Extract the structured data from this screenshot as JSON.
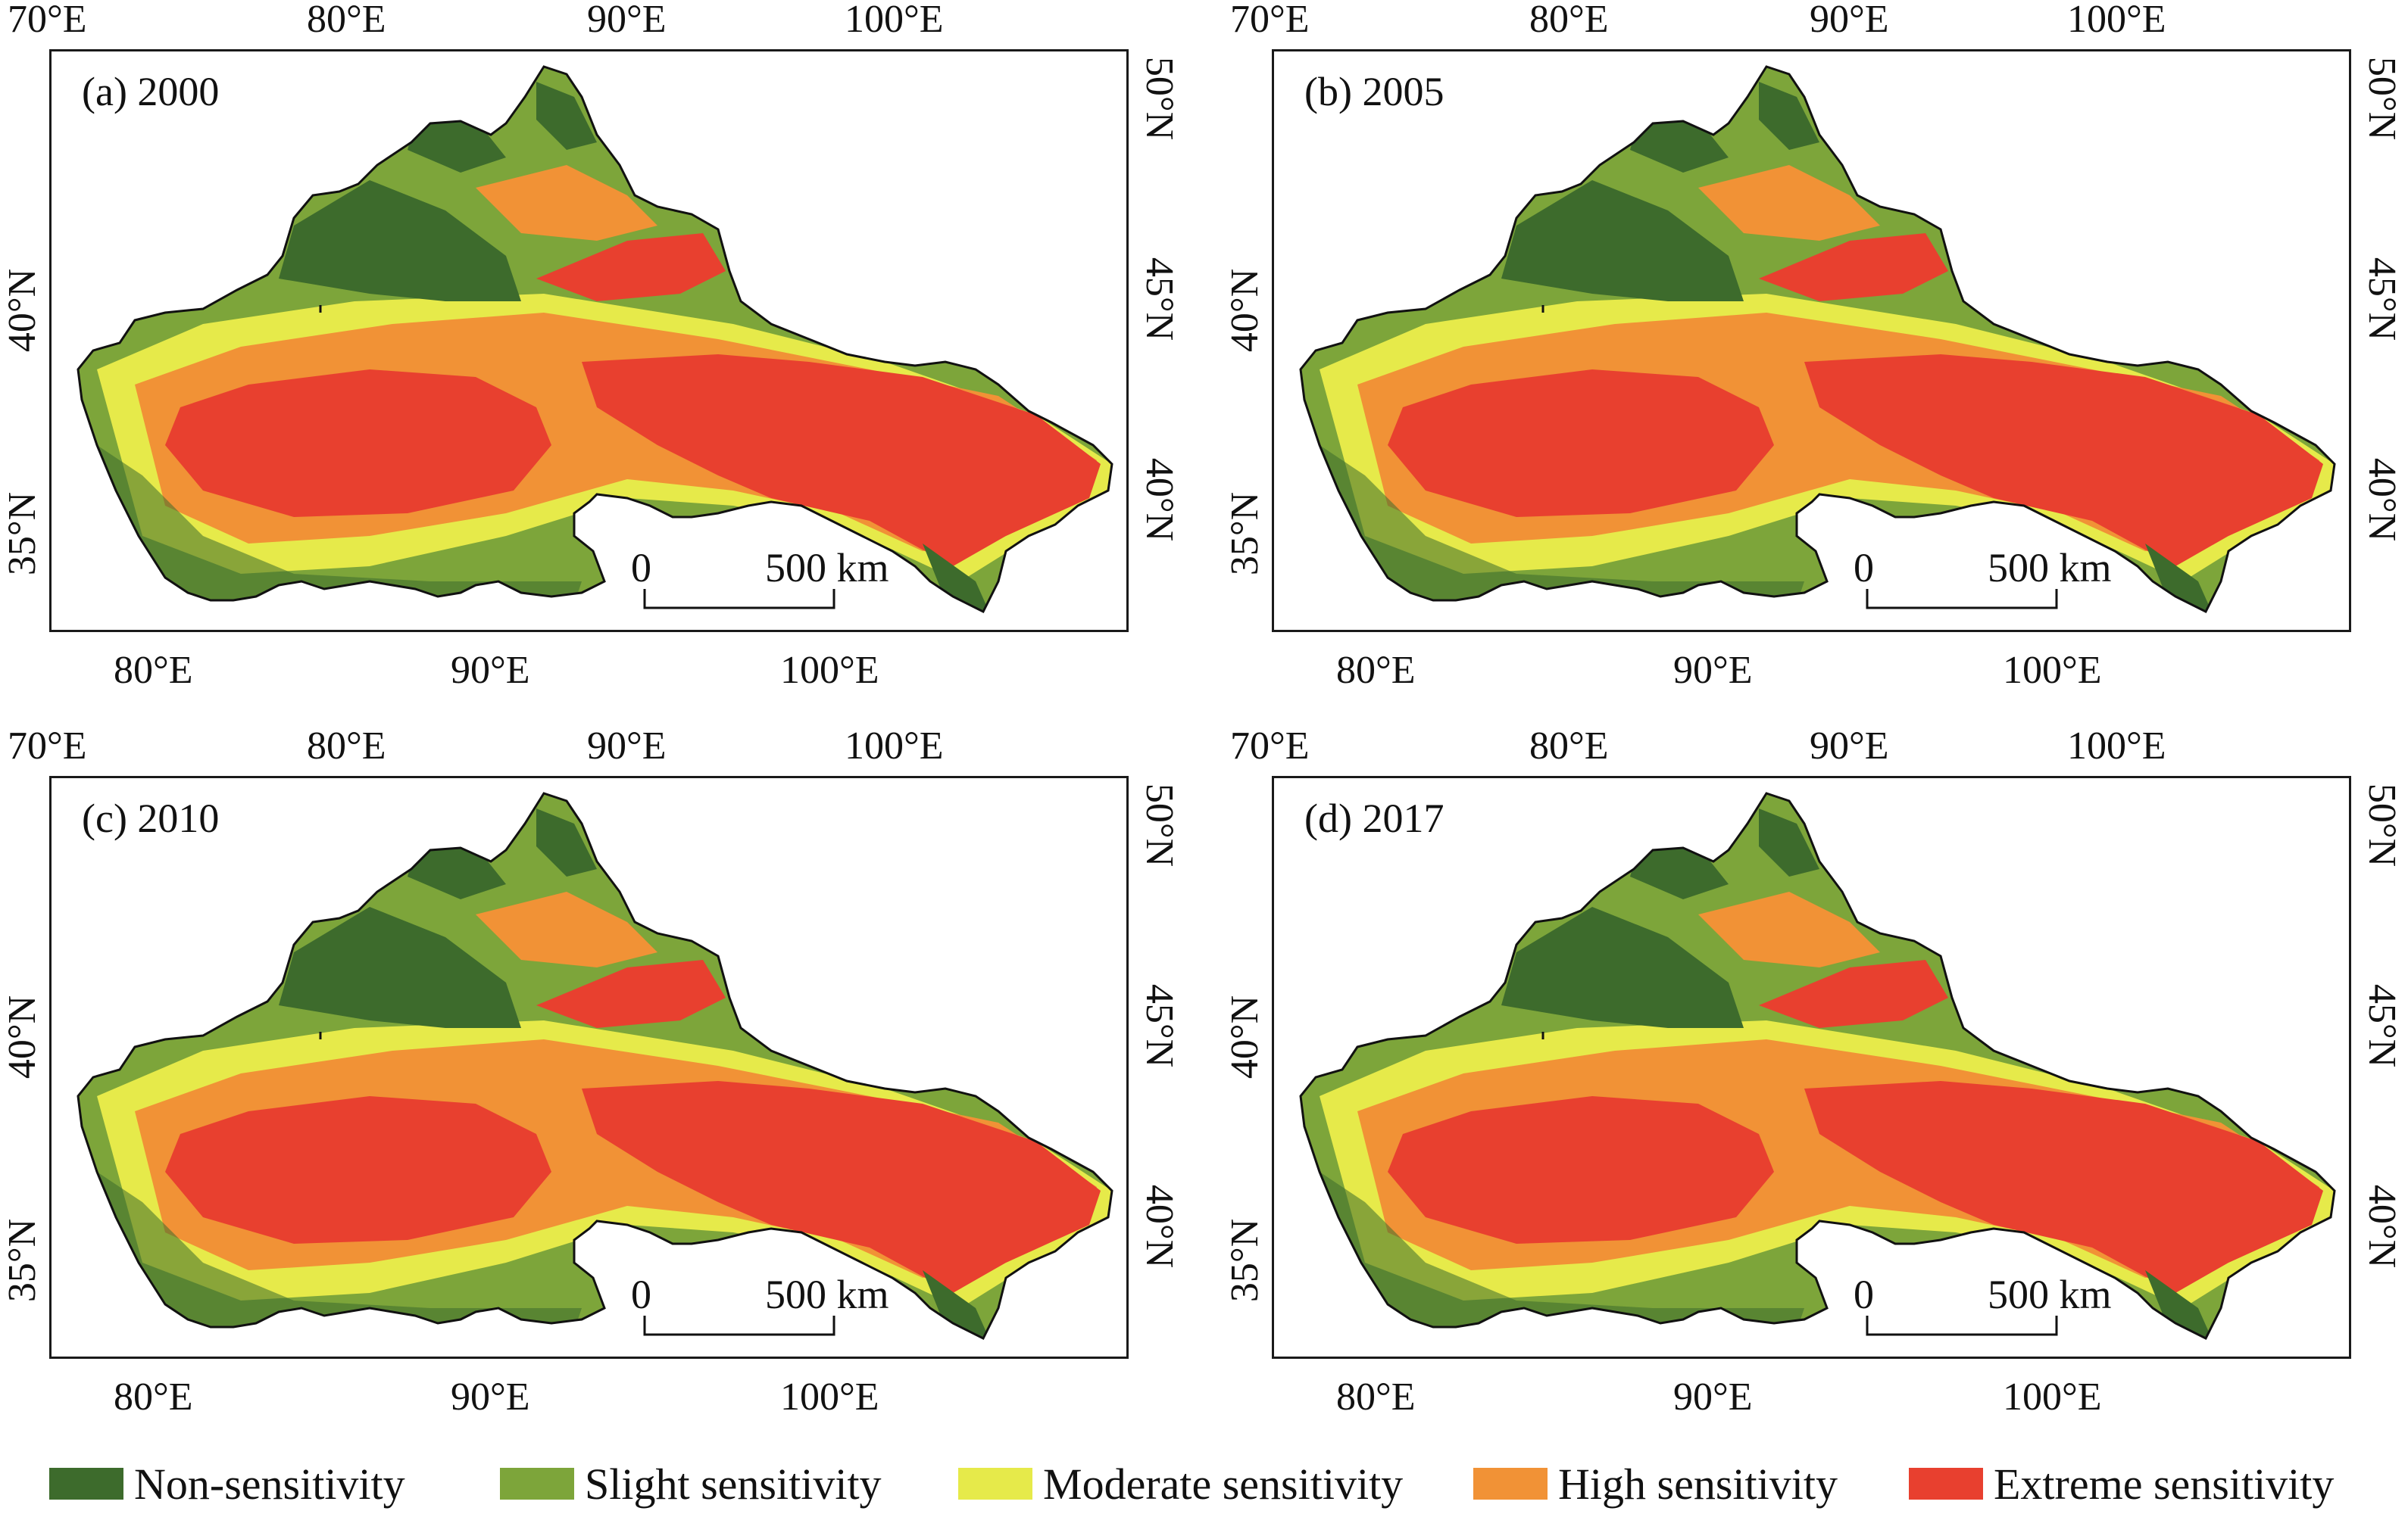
{
  "panels": [
    {
      "label": "(a) 2000"
    },
    {
      "label": "(b) 2005"
    },
    {
      "label": "(c) 2010"
    },
    {
      "label": "(d) 2017"
    }
  ],
  "axes": {
    "top_lon": [
      "70°E",
      "80°E",
      "90°E",
      "100°E"
    ],
    "bottom_lon": [
      "80°E",
      "90°E",
      "100°E"
    ],
    "left_lat": [
      "40°N",
      "35°N"
    ],
    "right_lat": [
      "50°N",
      "45°N",
      "40°N"
    ]
  },
  "scale_bar": {
    "zero": "0",
    "length": "500 km"
  },
  "legend": [
    {
      "label": "Non-sensitivity",
      "color": "#3d6b2c"
    },
    {
      "label": "Slight sensitivity",
      "color": "#7da53a"
    },
    {
      "label": "Moderate sensitivity",
      "color": "#e6ea4a"
    },
    {
      "label": "High sensitivity",
      "color": "#f19236"
    },
    {
      "label": "Extreme sensitivity",
      "color": "#e8402f"
    }
  ]
}
